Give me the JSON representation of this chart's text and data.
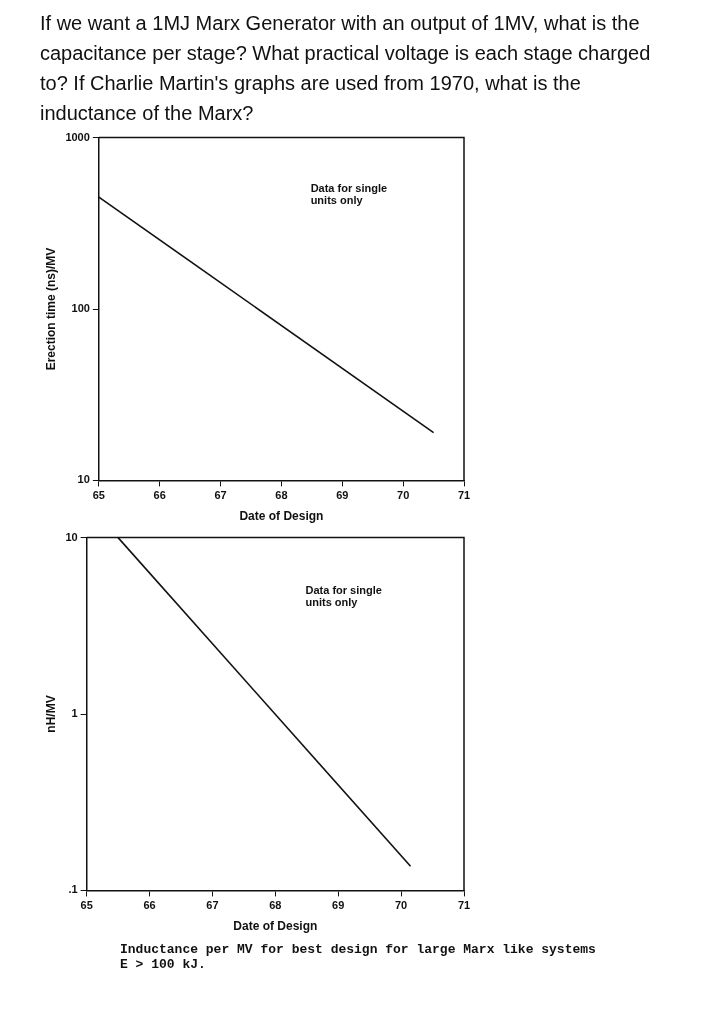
{
  "chart_data": [
    {
      "type": "line",
      "title": "If we want a 1MJ Marx Generator with an output of 1MV, what is the capacitance per stage? What practical voltage is each stage charged to? If Charlie Martin's graphs are used from 1970, what is the inductance of the Marx?",
      "xlabel": "Date of Design",
      "ylabel": "Erection time (ns)/MV",
      "log": "y",
      "grid": false,
      "legend": false,
      "marker": "none",
      "line_style": "solid",
      "xlim": [
        65,
        71
      ],
      "xticks": [
        65,
        66,
        67,
        68,
        69,
        70,
        71
      ],
      "ylim": [
        10,
        1000
      ],
      "yticks": [
        10,
        100,
        1000
      ],
      "annotations": [
        "Data for single units only"
      ],
      "series": [
        {
          "color": "#111111",
          "x": [
            65,
            70.5
          ],
          "values": [
            450,
            19
          ]
        }
      ]
    },
    {
      "type": "line",
      "xlabel": "Date of Design",
      "ylabel": "nH/MV",
      "log": "y",
      "grid": false,
      "legend": false,
      "marker": "none",
      "line_style": "solid",
      "xlim": [
        65,
        71
      ],
      "xticks": [
        65,
        66,
        67,
        68,
        69,
        70,
        71
      ],
      "ylim": [
        0.1,
        10
      ],
      "yticks": [
        {
          "value": 0.1,
          "label": ".1"
        },
        1,
        10
      ],
      "annotations": [
        "Data for single units only",
        "Inductance per MV for best design for large Marx like systems E > 100 kJ."
      ],
      "series": [
        {
          "color": "#111111",
          "x": [
            65.5,
            70.15
          ],
          "values": [
            10,
            0.137
          ]
        }
      ]
    }
  ]
}
